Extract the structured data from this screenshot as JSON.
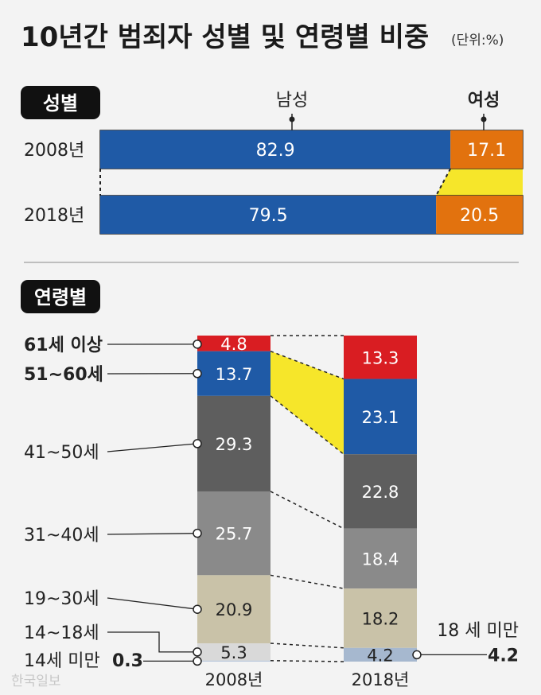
{
  "title": "10년간 범죄자 성별 및 연령별 비중",
  "unit": "(단위:%)",
  "watermark": "한국일보",
  "colors": {
    "male": "#1f5aa6",
    "female": "#e2720e",
    "age61plus": "#d91d22",
    "age51_60": "#1f5aa6",
    "age41_50": "#5e5e5e",
    "age31_40": "#8a8a8a",
    "age19_30": "#c9c2a8",
    "age14_18": "#d9d9d9",
    "under14": "#b8c7db",
    "under18_2018": "#a6b8cf",
    "connector": "#f6e62a",
    "badge": "#111111"
  },
  "chart_data": [
    {
      "type": "bar",
      "orientation": "horizontal",
      "stacked": true,
      "section_label": "성별",
      "categories": [
        "2008년",
        "2018년"
      ],
      "series": [
        {
          "name": "남성",
          "values": [
            82.9,
            79.5
          ]
        },
        {
          "name": "여성",
          "values": [
            17.1,
            20.5
          ]
        }
      ]
    },
    {
      "type": "bar",
      "orientation": "vertical",
      "stacked": true,
      "section_label": "연령별",
      "categories": [
        "2008년",
        "2018년"
      ],
      "series": [
        {
          "name": "61세 이상",
          "values": [
            4.8,
            13.3
          ]
        },
        {
          "name": "51~60세",
          "values": [
            13.7,
            23.1
          ]
        },
        {
          "name": "41~50세",
          "values": [
            29.3,
            22.8
          ]
        },
        {
          "name": "31~40세",
          "values": [
            25.7,
            18.4
          ]
        },
        {
          "name": "19~30세",
          "values": [
            20.9,
            18.2
          ]
        },
        {
          "name": "14~18세",
          "values": [
            5.3,
            null
          ]
        },
        {
          "name": "14세 미만",
          "values": [
            0.3,
            null
          ]
        },
        {
          "name": "18 세 미만",
          "values": [
            null,
            4.2
          ]
        }
      ],
      "annotations": {
        "under14_label": "14세 미만",
        "under14_value": "0.3",
        "under18_label": "18 세 미만",
        "under18_value": "4.2"
      }
    }
  ]
}
